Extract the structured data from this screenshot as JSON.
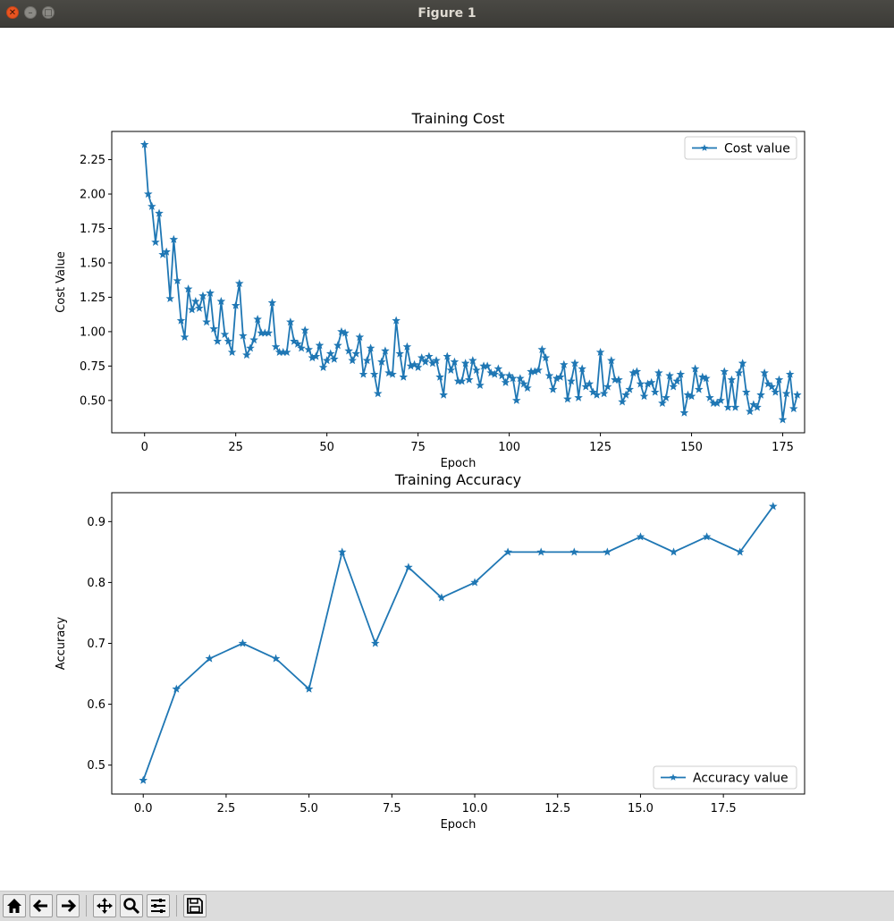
{
  "window": {
    "title": "Figure 1"
  },
  "toolbar": {
    "buttons": [
      {
        "name": "home-icon"
      },
      {
        "name": "back-icon"
      },
      {
        "name": "forward-icon"
      },
      {
        "name": "pan-icon"
      },
      {
        "name": "zoom-icon"
      },
      {
        "name": "configure-subplots-icon"
      },
      {
        "name": "save-icon"
      }
    ]
  },
  "chart_data": [
    {
      "type": "line",
      "title": "Training Cost",
      "xlabel": "Epoch",
      "ylabel": "Cost Value",
      "xlim": [
        -9,
        181
      ],
      "ylim": [
        0.265,
        2.455
      ],
      "xticks": [
        0,
        25,
        50,
        75,
        100,
        125,
        150,
        175
      ],
      "xtick_labels": [
        "0",
        "25",
        "50",
        "75",
        "100",
        "125",
        "150",
        "175"
      ],
      "yticks": [
        0.5,
        0.75,
        1.0,
        1.25,
        1.5,
        1.75,
        2.0,
        2.25
      ],
      "ytick_labels": [
        "0.50",
        "0.75",
        "1.00",
        "1.25",
        "1.50",
        "1.75",
        "2.00",
        "2.25"
      ],
      "grid": false,
      "legend_position": "upper right",
      "marker": "star",
      "color": "#1f77b4",
      "series": [
        {
          "name": "Cost value",
          "values": [
            2.36,
            2.0,
            1.91,
            1.65,
            1.86,
            1.56,
            1.58,
            1.24,
            1.67,
            1.37,
            1.08,
            0.96,
            1.31,
            1.16,
            1.22,
            1.17,
            1.26,
            1.07,
            1.28,
            1.02,
            0.93,
            1.22,
            0.98,
            0.93,
            0.85,
            1.19,
            1.35,
            0.97,
            0.83,
            0.88,
            0.94,
            1.09,
            0.99,
            0.99,
            0.99,
            1.21,
            0.89,
            0.85,
            0.85,
            0.85,
            1.07,
            0.93,
            0.91,
            0.88,
            1.01,
            0.87,
            0.81,
            0.82,
            0.9,
            0.74,
            0.79,
            0.84,
            0.8,
            0.9,
            1.0,
            0.99,
            0.86,
            0.79,
            0.84,
            0.96,
            0.69,
            0.79,
            0.88,
            0.69,
            0.55,
            0.78,
            0.86,
            0.7,
            0.69,
            1.08,
            0.84,
            0.67,
            0.89,
            0.75,
            0.76,
            0.74,
            0.81,
            0.78,
            0.82,
            0.77,
            0.79,
            0.67,
            0.54,
            0.82,
            0.72,
            0.78,
            0.64,
            0.64,
            0.77,
            0.65,
            0.79,
            0.72,
            0.61,
            0.75,
            0.75,
            0.7,
            0.69,
            0.73,
            0.68,
            0.63,
            0.68,
            0.66,
            0.5,
            0.66,
            0.62,
            0.59,
            0.71,
            0.71,
            0.72,
            0.87,
            0.81,
            0.68,
            0.58,
            0.66,
            0.67,
            0.76,
            0.51,
            0.64,
            0.77,
            0.52,
            0.73,
            0.6,
            0.62,
            0.56,
            0.54,
            0.85,
            0.55,
            0.6,
            0.79,
            0.65,
            0.65,
            0.49,
            0.54,
            0.58,
            0.7,
            0.71,
            0.62,
            0.53,
            0.62,
            0.63,
            0.56,
            0.7,
            0.48,
            0.52,
            0.68,
            0.6,
            0.64,
            0.69,
            0.41,
            0.54,
            0.53,
            0.73,
            0.58,
            0.67,
            0.66,
            0.52,
            0.48,
            0.48,
            0.5,
            0.71,
            0.45,
            0.65,
            0.45,
            0.7,
            0.77,
            0.56,
            0.42,
            0.47,
            0.45,
            0.54,
            0.7,
            0.62,
            0.6,
            0.56,
            0.65,
            0.36,
            0.55,
            0.69,
            0.44,
            0.54
          ]
        }
      ]
    },
    {
      "type": "line",
      "title": "Training Accuracy",
      "xlabel": "Epoch",
      "ylabel": "Accuracy",
      "xlim": [
        -0.95,
        19.95
      ],
      "ylim": [
        0.4525,
        0.9475
      ],
      "xticks": [
        0,
        2.5,
        5,
        7.5,
        10,
        12.5,
        15,
        17.5
      ],
      "xtick_labels": [
        "0.0",
        "2.5",
        "5.0",
        "7.5",
        "10.0",
        "12.5",
        "15.0",
        "17.5"
      ],
      "yticks": [
        0.5,
        0.6,
        0.7,
        0.8,
        0.9
      ],
      "ytick_labels": [
        "0.5",
        "0.6",
        "0.7",
        "0.8",
        "0.9"
      ],
      "grid": false,
      "legend_position": "lower right",
      "marker": "star",
      "color": "#1f77b4",
      "series": [
        {
          "name": "Accuracy value",
          "values": [
            0.475,
            0.625,
            0.675,
            0.7,
            0.675,
            0.625,
            0.85,
            0.7,
            0.825,
            0.775,
            0.8,
            0.85,
            0.85,
            0.85,
            0.85,
            0.875,
            0.85,
            0.875,
            0.85,
            0.925
          ]
        }
      ]
    }
  ]
}
